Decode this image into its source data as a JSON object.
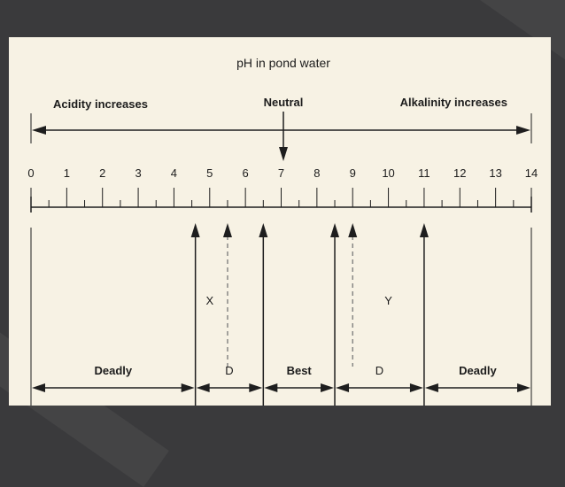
{
  "diagram": {
    "title": "pH in pond water",
    "acidity_label": "Acidity increases",
    "neutral_label": "Neutral",
    "alkalinity_label": "Alkalinity increases",
    "scale": {
      "ticks": [
        "0",
        "1",
        "2",
        "3",
        "4",
        "5",
        "6",
        "7",
        "8",
        "9",
        "10",
        "11",
        "12",
        "13",
        "14"
      ],
      "min": 0,
      "max": 14,
      "neutral_value": 7
    },
    "markers": [
      {
        "id": "deadly-acid-limit",
        "value": 4.6,
        "style": "solid"
      },
      {
        "id": "x-limit",
        "value": 5.5,
        "style": "dashed"
      },
      {
        "id": "best-start",
        "value": 6.5,
        "style": "solid"
      },
      {
        "id": "best-end",
        "value": 8.5,
        "style": "solid"
      },
      {
        "id": "y-limit",
        "value": 9.0,
        "style": "dashed"
      },
      {
        "id": "deadly-alkali-limit",
        "value": 11.0,
        "style": "solid"
      }
    ],
    "letters": [
      {
        "id": "x",
        "text": "X",
        "value": 5.0
      },
      {
        "id": "y",
        "text": "Y",
        "value": 10.0
      }
    ],
    "zones": [
      {
        "id": "deadly-left",
        "label": "Deadly",
        "from": 0,
        "to": 4.6
      },
      {
        "id": "d-left",
        "label": "D",
        "from": 4.6,
        "to": 6.5
      },
      {
        "id": "best",
        "label": "Best",
        "from": 6.5,
        "to": 8.5
      },
      {
        "id": "d-right",
        "label": "D",
        "from": 8.5,
        "to": 11.0
      },
      {
        "id": "deadly-right",
        "label": "Deadly",
        "from": 11.0,
        "to": 14
      }
    ]
  }
}
